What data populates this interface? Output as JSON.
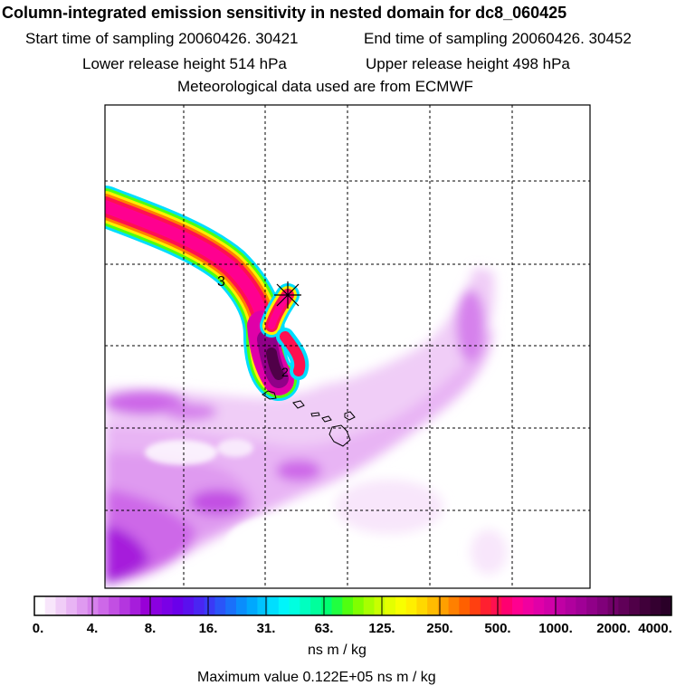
{
  "header": {
    "title": "Column-integrated emission sensitivity in nested domain for dc8_060425",
    "start_time": "Start time of sampling 20060426. 30421",
    "end_time": "End time of sampling 20060426. 30452",
    "lower_height": "Lower release height  514 hPa",
    "upper_height": "Upper release height  498 hPa",
    "met_data": "Meteorological data used are from ECMWF"
  },
  "map": {
    "contour_labels": [
      "3",
      "2"
    ],
    "release_marker": "release-point-star"
  },
  "colorbar": {
    "ticks": [
      "0.",
      "4.",
      "8.",
      "16.",
      "31.",
      "63.",
      "125.",
      "250.",
      "500.",
      "1000.",
      "2000.",
      "4000."
    ],
    "colors": [
      "#ffffff",
      "#f8e6fb",
      "#f0cdf7",
      "#e8b4f4",
      "#df9af0",
      "#d681ec",
      "#cd68e8",
      "#c24fe3",
      "#b436df",
      "#a61ddb",
      "#9800d7",
      "#8a00e0",
      "#7a00e6",
      "#6a00ea",
      "#5a10ee",
      "#4a25f2",
      "#3a3af6",
      "#2a55f8",
      "#1a70fa",
      "#0a8dfc",
      "#00a8fd",
      "#00c3fe",
      "#00defe",
      "#00f5fa",
      "#00ffe0",
      "#00ffc0",
      "#00ff9c",
      "#00ff70",
      "#20ff40",
      "#50ff10",
      "#80ff00",
      "#a8ff00",
      "#c8ff00",
      "#e4ff00",
      "#f8ff00",
      "#ffef00",
      "#ffd800",
      "#ffbc00",
      "#ffa000",
      "#ff8000",
      "#ff6000",
      "#ff4010",
      "#ff2030",
      "#ff1050",
      "#ff0070",
      "#ff0090",
      "#f000a0",
      "#e000a8",
      "#d000a8",
      "#c000a4",
      "#b0009e",
      "#a00096",
      "#900088",
      "#80007a",
      "#700068",
      "#600058",
      "#500048",
      "#40003a",
      "#340030",
      "#2a0028"
    ],
    "units": "ns m / kg",
    "max_value": "Maximum value  0.122E+05 ns m / kg"
  }
}
